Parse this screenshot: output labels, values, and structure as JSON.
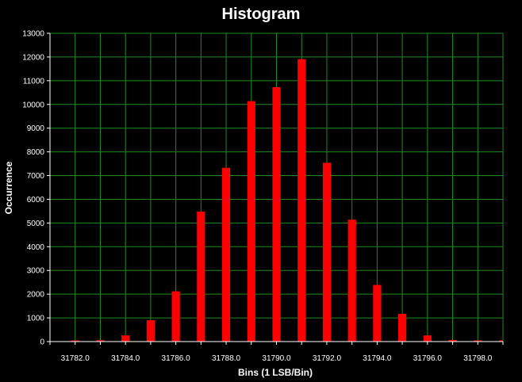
{
  "chart_data": {
    "type": "bar",
    "title": "Histogram",
    "xlabel": "Bins (1 LSB/Bin)",
    "ylabel": "Occurrence",
    "xlim": [
      31781.0,
      31799.0
    ],
    "ylim": [
      0,
      13000
    ],
    "x_ticks": [
      "31782.0",
      "31784.0",
      "31786.0",
      "31788.0",
      "31790.0",
      "31792.0",
      "31794.0",
      "31796.0",
      "31798.0"
    ],
    "y_ticks": [
      "0",
      "1000",
      "2000",
      "3000",
      "4000",
      "5000",
      "6000",
      "7000",
      "8000",
      "9000",
      "10000",
      "11000",
      "12000",
      "13000"
    ],
    "grid": true,
    "colors": {
      "background": "#000000",
      "bar": "#ff0000",
      "grid": "#1e8c1e",
      "text": "#ffffff"
    },
    "x": [
      31782,
      31783,
      31784,
      31785,
      31786,
      31787,
      31788,
      31789,
      31790,
      31791,
      31792,
      31793,
      31794,
      31795,
      31796,
      31797,
      31798,
      31799
    ],
    "values": [
      15,
      60,
      260,
      900,
      2120,
      5480,
      7330,
      10140,
      10730,
      11910,
      7540,
      5140,
      2390,
      1170,
      260,
      70,
      20,
      10
    ]
  }
}
